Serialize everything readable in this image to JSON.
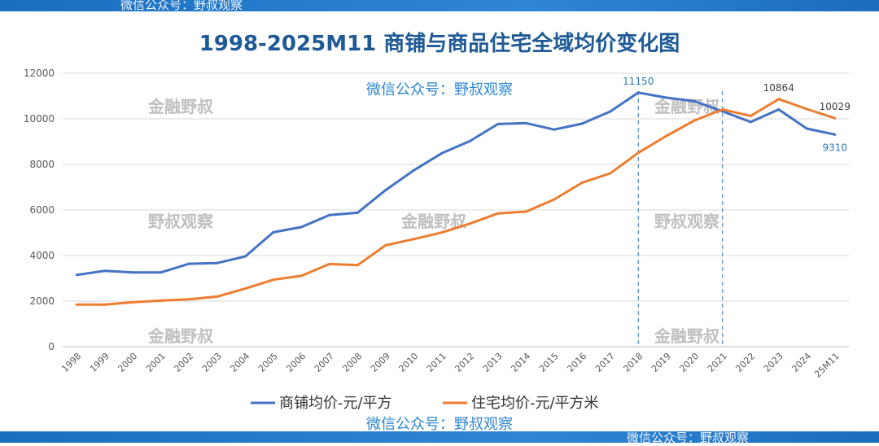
{
  "header_band": {
    "text": "微信公众号：野叔观察"
  },
  "footer_band": {
    "text": "微信公众号：野叔观察"
  },
  "watermarks": {
    "wechat_top": "微信公众号：野叔观察",
    "wechat_bottom": "微信公众号：野叔观察",
    "gray": [
      "金融野叔",
      "金融野叔",
      "野叔观察",
      "金融野叔",
      "野叔观察",
      "金融野叔",
      "金融野叔"
    ]
  },
  "colors": {
    "commercial": "#4472C4",
    "residential": "#ED7D31",
    "grid": "#D9D9D9",
    "label_blue": "#2E75B6",
    "label_dark": "#404040"
  },
  "chart_data": {
    "type": "line",
    "title": "1998-2025M11 商铺与商品住宅全域均价变化图",
    "xlabel": "",
    "ylabel": "",
    "ylim": [
      0,
      12000
    ],
    "yticks": [
      0,
      2000,
      4000,
      6000,
      8000,
      10000,
      12000
    ],
    "categories": [
      "1998",
      "1999",
      "2000",
      "2001",
      "2002",
      "2003",
      "2004",
      "2005",
      "2006",
      "2007",
      "2008",
      "2009",
      "2010",
      "2011",
      "2012",
      "2013",
      "2014",
      "2015",
      "2016",
      "2017",
      "2018",
      "2019",
      "2020",
      "2021",
      "2022",
      "2023",
      "2024",
      "25M11"
    ],
    "series": [
      {
        "name": "商铺均价-元/平方",
        "color": "#4472C4",
        "values": [
          3150,
          3330,
          3260,
          3260,
          3640,
          3670,
          3960,
          5020,
          5250,
          5780,
          5880,
          6870,
          7740,
          8490,
          9020,
          9770,
          9810,
          9530,
          9790,
          10320,
          11150,
          10930,
          10770,
          10330,
          9860,
          10410,
          9570,
          9310
        ]
      },
      {
        "name": "住宅均价-元/平方米",
        "color": "#ED7D31",
        "values": [
          1850,
          1850,
          1950,
          2020,
          2080,
          2200,
          2550,
          2940,
          3110,
          3630,
          3580,
          4450,
          4720,
          5010,
          5400,
          5850,
          5930,
          6460,
          7200,
          7610,
          8510,
          9250,
          9930,
          10410,
          10130,
          10864,
          10430,
          10029
        ]
      }
    ],
    "data_labels": [
      {
        "series": 0,
        "index": 20,
        "text": "11150"
      },
      {
        "series": 1,
        "index": 25,
        "text": "10864"
      },
      {
        "series": 1,
        "index": 27,
        "text": "10029"
      },
      {
        "series": 0,
        "index": 27,
        "text": "9310"
      }
    ],
    "vertical_markers": [
      "2018",
      "2021"
    ],
    "grid": true,
    "legend": "bottom"
  }
}
